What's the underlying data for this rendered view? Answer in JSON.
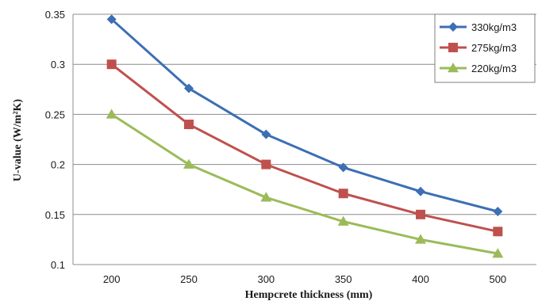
{
  "chart_data": {
    "type": "line",
    "title": "",
    "xlabel": "Hempcrete thickness (mm)",
    "ylabel": "U-value  (W/m²K)",
    "categories": [
      "200",
      "250",
      "300",
      "350",
      "400",
      "500"
    ],
    "ylim": [
      0.1,
      0.35
    ],
    "yticks": [
      "0.1",
      "0.15",
      "0.2",
      "0.25",
      "0.3",
      "0.35"
    ],
    "grid": "horizontal",
    "legend_position": "top-right",
    "series": [
      {
        "name": "330kg/m3",
        "color": "#3c6fb4",
        "marker": "diamond",
        "values": [
          0.345,
          0.276,
          0.23,
          0.197,
          0.173,
          0.153
        ]
      },
      {
        "name": "275kg/m3",
        "color": "#c0504d",
        "marker": "square",
        "values": [
          0.3,
          0.24,
          0.2,
          0.171,
          0.15,
          0.133
        ]
      },
      {
        "name": "220kg/m3",
        "color": "#9bbb59",
        "marker": "triangle",
        "values": [
          0.25,
          0.2,
          0.167,
          0.143,
          0.125,
          0.111
        ]
      }
    ]
  }
}
